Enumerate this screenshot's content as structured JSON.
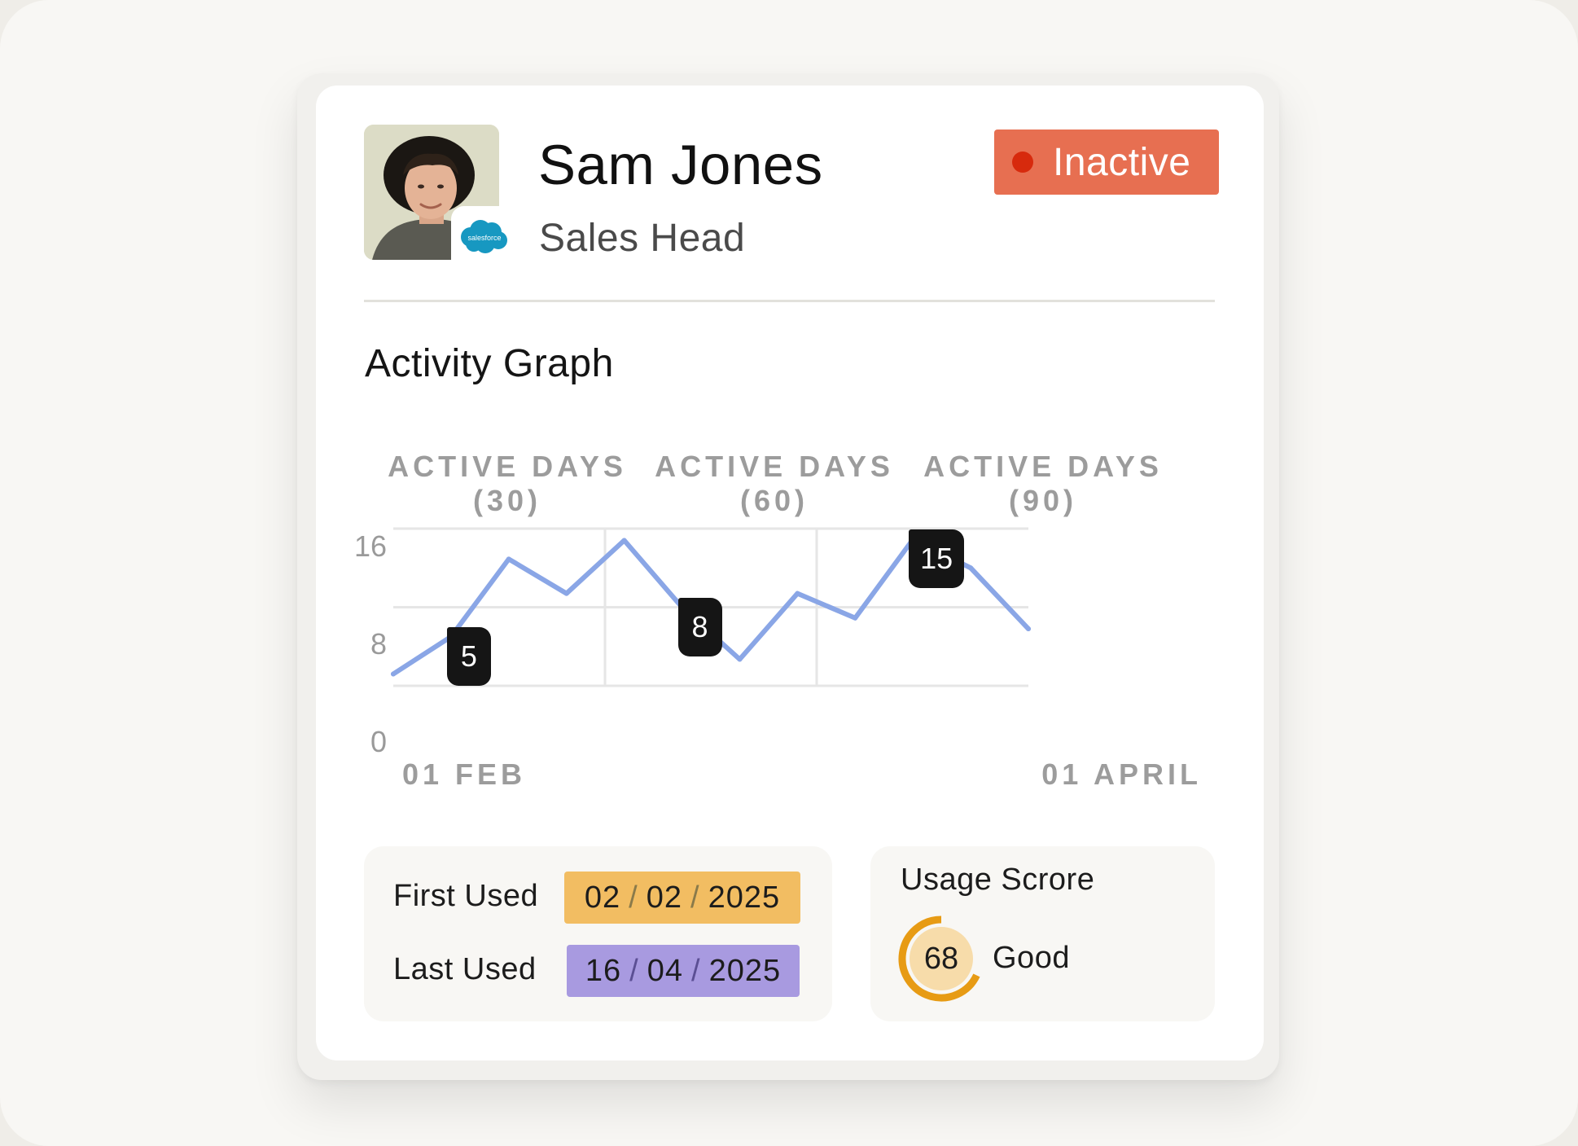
{
  "profile": {
    "name": "Sam Jones",
    "role": "Sales Head",
    "crm_badge": "salesforce",
    "status": "Inactive",
    "status_color": "#e76f51",
    "status_dot_color": "#d72a0d"
  },
  "activity": {
    "title": "Activity Graph",
    "columns": [
      {
        "line1": "ACTIVE DAYS",
        "line2": "(30)"
      },
      {
        "line1": "ACTIVE DAYS",
        "line2": "(60)"
      },
      {
        "line1": "ACTIVE DAYS",
        "line2": "(90)"
      }
    ]
  },
  "chart_data": {
    "type": "line",
    "x_tick_labels": [
      "01 FEB",
      "01 APRIL"
    ],
    "y_ticks": [
      0,
      8,
      16
    ],
    "ylim": [
      0,
      16
    ],
    "grid": true,
    "line_color": "#8aa6e6",
    "series": [
      {
        "values": [
          1.2,
          5,
          12.9,
          9.4,
          14.8,
          8,
          2.7,
          9.4,
          6.9,
          14.9,
          12,
          5.8
        ]
      }
    ],
    "point_labels": [
      {
        "index": 1,
        "value": "5"
      },
      {
        "index": 5,
        "value": "8"
      },
      {
        "index": 9,
        "value": "15"
      }
    ]
  },
  "usage": {
    "first_used_label": "First Used",
    "first_used": {
      "day": "02",
      "month": "02",
      "year": "2025",
      "separator": "/"
    },
    "first_used_color": "#f2bd62",
    "last_used_label": "Last Used",
    "last_used": {
      "day": "16",
      "month": "04",
      "year": "2025",
      "separator": "/"
    },
    "last_used_color": "#a89ae0",
    "score_title": "Usage Scrore",
    "score": 68,
    "score_max": 100,
    "score_text": "Good",
    "score_color": "#e79b14"
  }
}
